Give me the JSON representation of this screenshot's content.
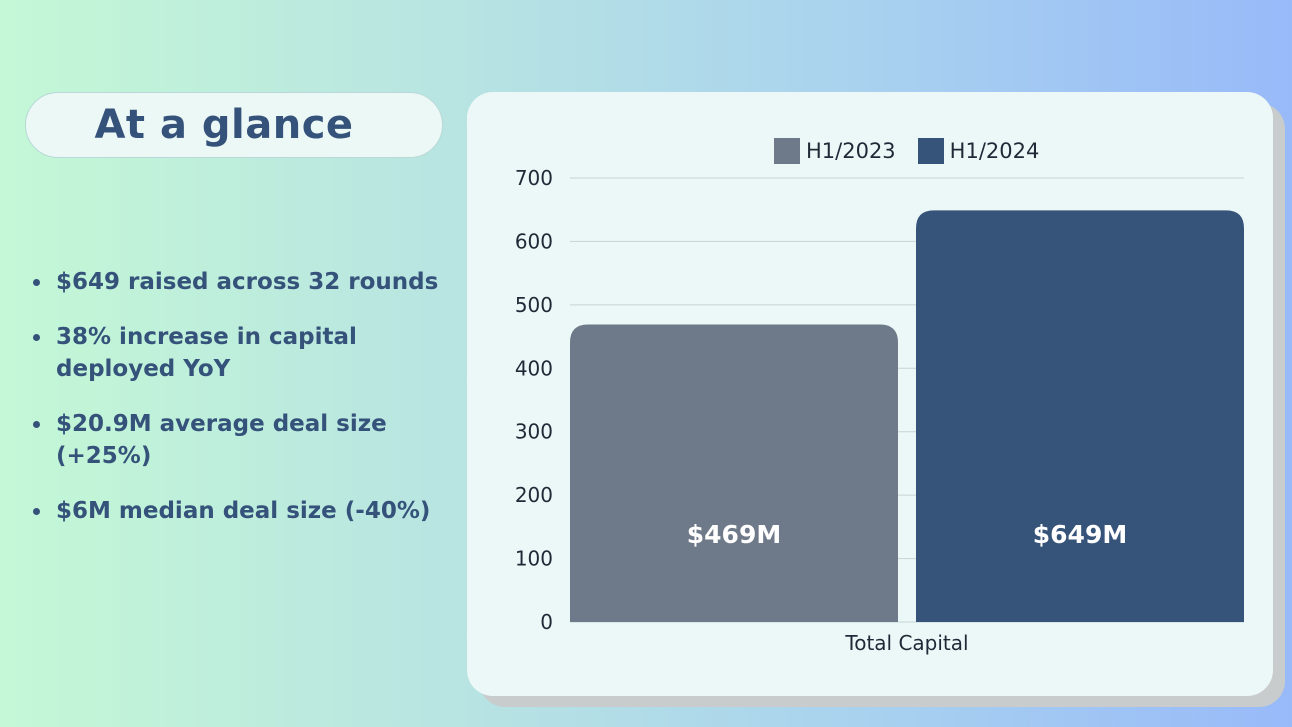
{
  "heading": "At a glance",
  "bullets": [
    "$649 raised across 32 rounds",
    "38% increase in capital deployed YoY",
    "$20.9M average deal size (+25%)",
    "$6M median deal size (-40%)"
  ],
  "chart_data": {
    "type": "bar",
    "categories": [
      "Total Capital"
    ],
    "series": [
      {
        "name": "H1/2023",
        "values": [
          469
        ],
        "label": "$469M",
        "color": "#6e7a89"
      },
      {
        "name": "H1/2024",
        "values": [
          649
        ],
        "label": "$649M",
        "color": "#36537a"
      }
    ],
    "ylim": [
      0,
      700
    ],
    "yticks": [
      0,
      100,
      200,
      300,
      400,
      500,
      600,
      700
    ],
    "grid": true,
    "legend_position": "top-center",
    "xlabel": "",
    "ylabel": ""
  }
}
